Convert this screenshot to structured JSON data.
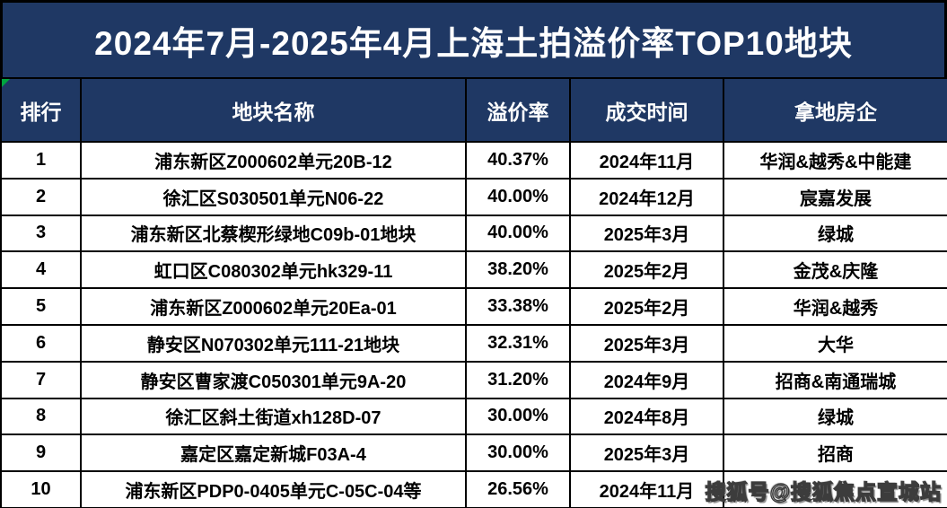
{
  "title": "2024年7月-2025年4月上海土拍溢价率TOP10地块",
  "watermark": "搜狐号@搜狐焦点宣城站",
  "colors": {
    "header_bg": "#1f3864",
    "header_text": "#ffffff",
    "cell_bg": "#ffffff",
    "cell_text": "#000000",
    "border": "#000000",
    "error_marker_green": "#00a63f"
  },
  "chart_data": {
    "type": "table",
    "title": "2024年7月-2025年4月上海土拍溢价率TOP10地块",
    "columns": [
      "排行",
      "地块名称",
      "溢价率",
      "成交时间",
      "拿地房企"
    ],
    "rows": [
      {
        "rank": "1",
        "plot_name": "浦东新区Z000602单元20B-12",
        "premium_rate": "40.37%",
        "deal_time": "2024年11月",
        "developer": "华润&越秀&中能建"
      },
      {
        "rank": "2",
        "plot_name": "徐汇区S030501单元N06-22",
        "premium_rate": "40.00%",
        "deal_time": "2024年12月",
        "developer": "宸嘉发展"
      },
      {
        "rank": "3",
        "plot_name": "浦东新区北蔡楔形绿地C09b-01地块",
        "premium_rate": "40.00%",
        "deal_time": "2025年3月",
        "developer": "绿城"
      },
      {
        "rank": "4",
        "plot_name": "虹口区C080302单元hk329-11",
        "premium_rate": "38.20%",
        "deal_time": "2025年2月",
        "developer": "金茂&庆隆"
      },
      {
        "rank": "5",
        "plot_name": "浦东新区Z000602单元20Ea-01",
        "premium_rate": "33.38%",
        "deal_time": "2025年2月",
        "developer": "华润&越秀"
      },
      {
        "rank": "6",
        "plot_name": "静安区N070302单元111-21地块",
        "premium_rate": "32.31%",
        "deal_time": "2025年3月",
        "developer": "大华"
      },
      {
        "rank": "7",
        "plot_name": "静安区曹家渡C050301单元9A-20",
        "premium_rate": "31.20%",
        "deal_time": "2024年9月",
        "developer": "招商&南通瑞城"
      },
      {
        "rank": "8",
        "plot_name": "徐汇区斜土街道xh128D-07",
        "premium_rate": "30.00%",
        "deal_time": "2024年8月",
        "developer": "绿城"
      },
      {
        "rank": "9",
        "plot_name": "嘉定区嘉定新城F03A-4",
        "premium_rate": "30.00%",
        "deal_time": "2025年3月",
        "developer": "招商"
      },
      {
        "rank": "10",
        "plot_name": "浦东新区PDP0-0405单元C-05C-04等",
        "premium_rate": "26.56%",
        "deal_time": "2024年11月",
        "developer": ""
      }
    ]
  }
}
